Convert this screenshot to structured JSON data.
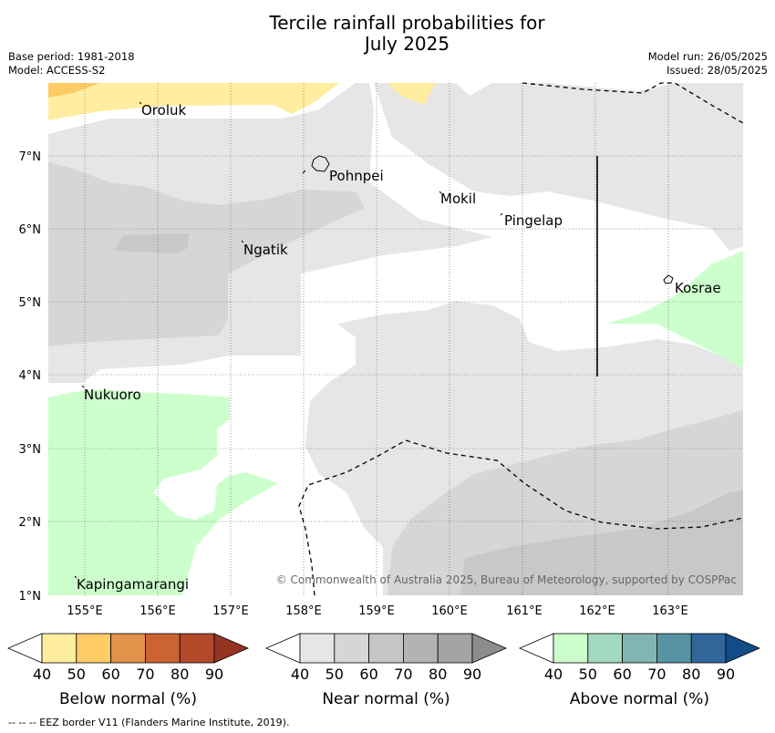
{
  "title_line1": "Tercile rainfall probabilities for",
  "title_line2": "July 2025",
  "meta": {
    "base_period": "Base period: 1981-2018",
    "model": "Model: ACCESS-S2",
    "model_run": "Model run: 26/05/2025",
    "issued": "Issued: 28/05/2025"
  },
  "lat_labels": [
    "7°N",
    "6°N",
    "5°N",
    "4°N",
    "3°N",
    "2°N",
    "1°N"
  ],
  "lon_labels": [
    "155°E",
    "156°E",
    "157°E",
    "158°E",
    "159°E",
    "160°E",
    "161°E",
    "162°E",
    "163°E"
  ],
  "places": [
    "Oroluk",
    "Pohnpei",
    "Mokil",
    "Pingelap",
    "Ngatik",
    "Kosrae",
    "Nukuoro",
    "Kapingamarangi"
  ],
  "copyright": "© Commonwealth of Australia 2025, Bureau of Meteorology, supported by COSPPac",
  "colorbars": [
    {
      "label": "Below normal (%)",
      "ticks": [
        "40",
        "50",
        "60",
        "70",
        "80",
        "90"
      ],
      "colors": [
        "#ffffff",
        "#ffeda0",
        "#fecb65",
        "#e2934a",
        "#cc6332",
        "#b2492a",
        "#963422"
      ]
    },
    {
      "label": "Near normal (%)",
      "ticks": [
        "40",
        "50",
        "60",
        "70",
        "80",
        "90"
      ],
      "colors": [
        "#ffffff",
        "#e6e6e6",
        "#d6d6d6",
        "#c5c5c5",
        "#b3b3b3",
        "#a3a3a3",
        "#8c8c8c"
      ]
    },
    {
      "label": "Above normal (%)",
      "ticks": [
        "40",
        "50",
        "60",
        "70",
        "80",
        "90"
      ],
      "colors": [
        "#ffffff",
        "#ccffcc",
        "#a3d9c0",
        "#81b5b2",
        "#5893a3",
        "#30669a",
        "#124c86"
      ]
    }
  ],
  "footnote": "--  --  -- EEZ border V11 (Flanders Marine Institute, 2019)."
}
